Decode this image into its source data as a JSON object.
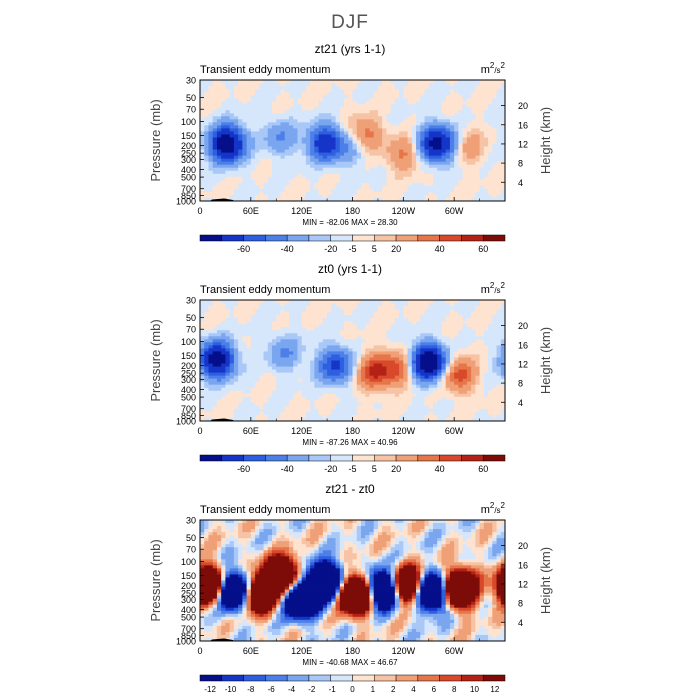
{
  "title": "DJF",
  "colors": {
    "neg": [
      "#050f8a",
      "#1535c8",
      "#2e5fe0",
      "#4d7fe8",
      "#7aa6f0",
      "#a9c8f7",
      "#d6e7fc"
    ],
    "pos": [
      "#fde3d0",
      "#f7c3a5",
      "#f0a077",
      "#e6764a",
      "#d8482a",
      "#b32214",
      "#7d0c08"
    ]
  },
  "chart_data": [
    {
      "type": "heatmap",
      "title": "zt21 (yrs 1-1)",
      "subtitle": "Transient eddy momentum",
      "units_base": "m",
      "units_base_exp": "2",
      "units_sep": "/s",
      "units_den_exp": "2",
      "xlabel": "",
      "ylabel": "Pressure (mb)",
      "ylabel_right": "Height (km)",
      "xticks": [
        "0",
        "60E",
        "120E",
        "180",
        "120W",
        "60W"
      ],
      "yticks": [
        "30",
        "50",
        "70",
        "100",
        "150",
        "200",
        "250",
        "300",
        "400",
        "500",
        "700",
        "850",
        "1000"
      ],
      "yticks_right": [
        "20",
        "16",
        "12",
        "8",
        "4"
      ],
      "stats": "MIN = -82.06   MAX =  28.30",
      "colorbar_labels": [
        "-60",
        "-40",
        "-20",
        "-5",
        "5",
        "20",
        "40",
        "60"
      ],
      "min": -82.06,
      "max": 28.3,
      "features": [
        {
          "lon": 32,
          "p": 190,
          "value": -82
        },
        {
          "lon": 95,
          "p": 160,
          "value": -20
        },
        {
          "lon": 148,
          "p": 185,
          "value": -55
        },
        {
          "lon": 178,
          "p": 220,
          "value": -15
        },
        {
          "lon": 195,
          "p": 145,
          "value": 26
        },
        {
          "lon": 240,
          "p": 260,
          "value": 22
        },
        {
          "lon": 280,
          "p": 190,
          "value": -70
        },
        {
          "lon": 318,
          "p": 210,
          "value": 15
        }
      ]
    },
    {
      "type": "heatmap",
      "title": "zt0 (yrs 1-1)",
      "subtitle": "Transient eddy momentum",
      "units_base": "m",
      "units_base_exp": "2",
      "units_sep": "/s",
      "units_den_exp": "2",
      "xlabel": "",
      "ylabel": "Pressure (mb)",
      "ylabel_right": "Height (km)",
      "xticks": [
        "0",
        "60E",
        "120E",
        "180",
        "120W",
        "60W"
      ],
      "yticks": [
        "30",
        "50",
        "70",
        "100",
        "150",
        "200",
        "250",
        "300",
        "400",
        "500",
        "700",
        "850",
        "1000"
      ],
      "yticks_right": [
        "20",
        "16",
        "12",
        "8",
        "4"
      ],
      "stats": "MIN = -87.26   MAX =  40.96",
      "colorbar_labels": [
        "-60",
        "-40",
        "-20",
        "-5",
        "5",
        "20",
        "40",
        "60"
      ],
      "min": -87.26,
      "max": 40.96,
      "features": [
        {
          "lon": 20,
          "p": 170,
          "value": -75
        },
        {
          "lon": 100,
          "p": 140,
          "value": -20
        },
        {
          "lon": 160,
          "p": 200,
          "value": -45
        },
        {
          "lon": 205,
          "p": 240,
          "value": 38
        },
        {
          "lon": 232,
          "p": 220,
          "value": 30
        },
        {
          "lon": 270,
          "p": 185,
          "value": -87
        },
        {
          "lon": 305,
          "p": 260,
          "value": 35
        }
      ]
    },
    {
      "type": "heatmap",
      "title": "zt21 - zt0",
      "subtitle": "Transient eddy momentum",
      "units_base": "m",
      "units_base_exp": "2",
      "units_sep": "/s",
      "units_den_exp": "2",
      "xlabel": "",
      "ylabel": "Pressure (mb)",
      "ylabel_right": "Height (km)",
      "xticks": [
        "0",
        "60E",
        "120E",
        "180",
        "120W",
        "60W"
      ],
      "yticks": [
        "30",
        "50",
        "70",
        "100",
        "150",
        "200",
        "250",
        "300",
        "400",
        "500",
        "700",
        "850",
        "1000"
      ],
      "yticks_right": [
        "20",
        "16",
        "12",
        "8",
        "4"
      ],
      "stats": "MIN = -40.68   MAX =  46.67",
      "colorbar_labels": [
        "-12",
        "-10",
        "-8",
        "-6",
        "-4",
        "-2",
        "-1",
        "0",
        "1",
        "2",
        "4",
        "6",
        "8",
        "10",
        "12"
      ],
      "min": -40.68,
      "max": 46.67,
      "features": [
        {
          "lon": 12,
          "p": 200,
          "value": 40
        },
        {
          "lon": 38,
          "p": 230,
          "value": -40
        },
        {
          "lon": 70,
          "p": 260,
          "value": 30
        },
        {
          "lon": 95,
          "p": 150,
          "value": 35
        },
        {
          "lon": 120,
          "p": 300,
          "value": -35
        },
        {
          "lon": 148,
          "p": 180,
          "value": -40
        },
        {
          "lon": 185,
          "p": 260,
          "value": 46
        },
        {
          "lon": 215,
          "p": 230,
          "value": -40
        },
        {
          "lon": 245,
          "p": 200,
          "value": 35
        },
        {
          "lon": 275,
          "p": 240,
          "value": -40
        },
        {
          "lon": 305,
          "p": 220,
          "value": 42
        }
      ]
    }
  ]
}
